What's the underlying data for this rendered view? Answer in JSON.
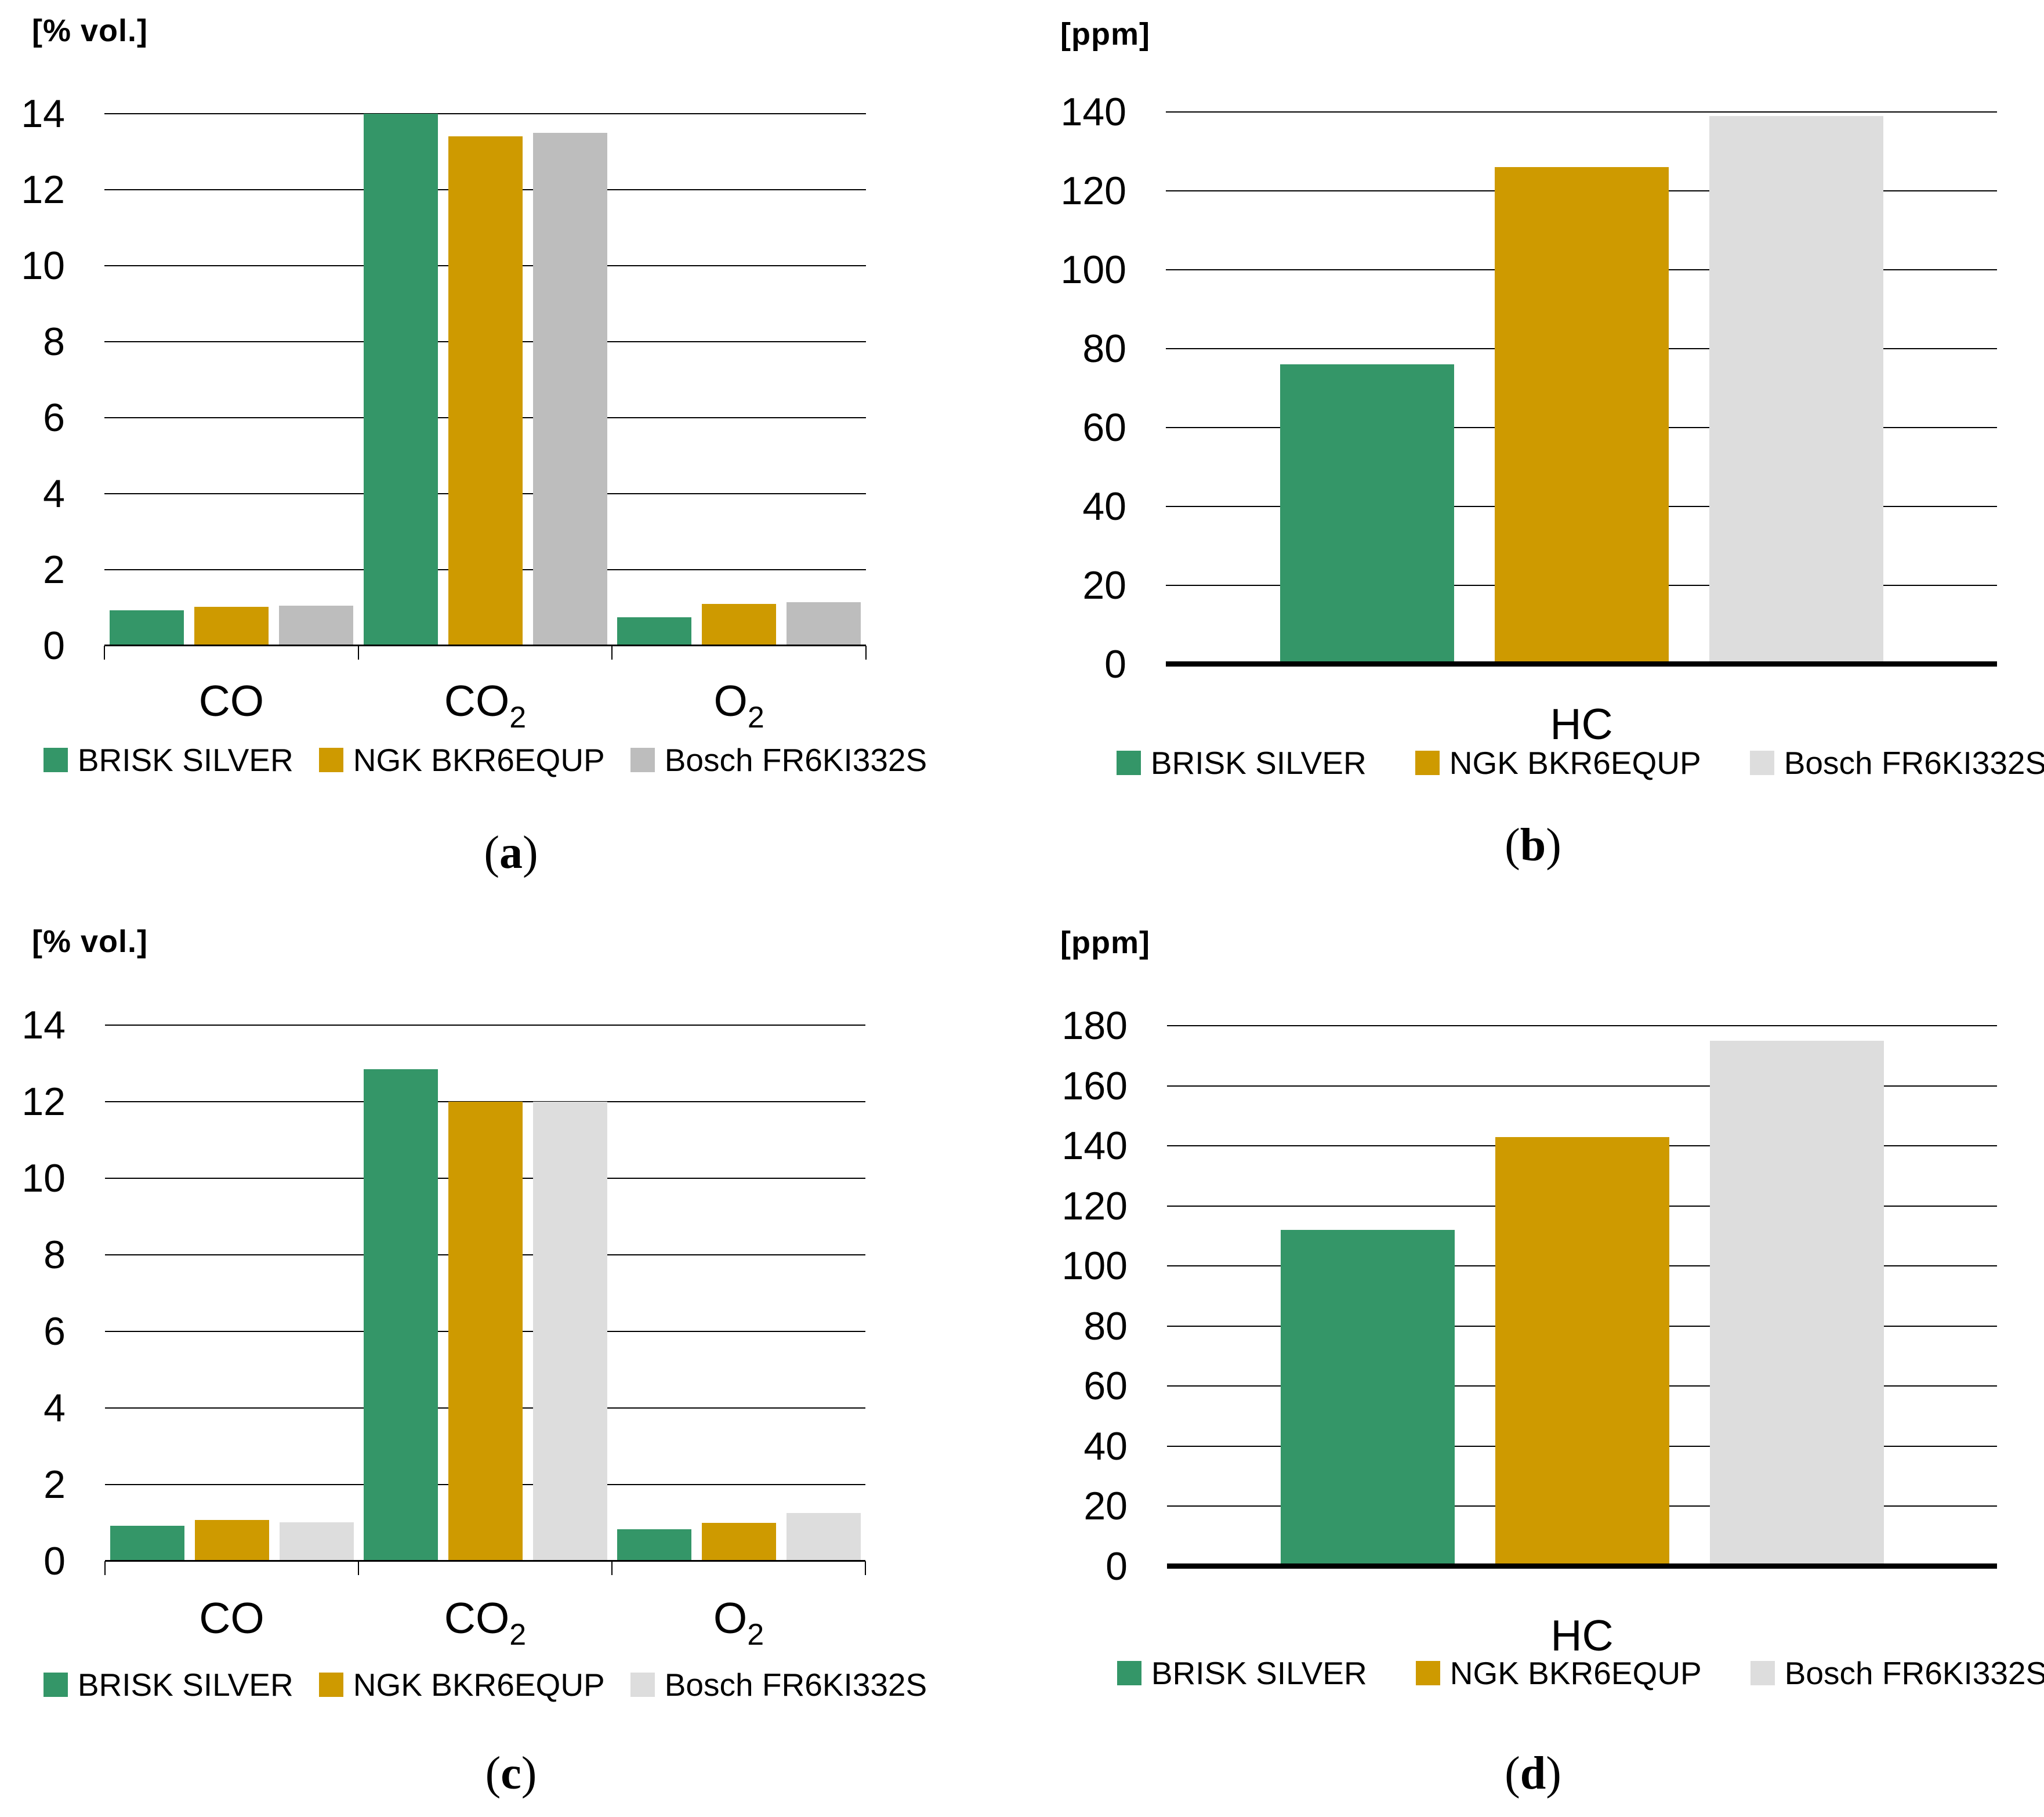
{
  "figure_note": "Four bar charts comparing exhaust gas measurements for three spark plugs",
  "chart_data": [
    {
      "id": "a",
      "type": "bar",
      "unit_label": "[% vol.]",
      "caption": {
        "pre": "(",
        "letter": "a",
        "post": ")"
      },
      "categories": [
        {
          "base": "CO",
          "sub": ""
        },
        {
          "base": "CO",
          "sub": "2"
        },
        {
          "base": "O",
          "sub": "2"
        }
      ],
      "series": [
        {
          "name": "BRISK SILVER",
          "color": "#349668",
          "values": [
            0.93,
            14.0,
            0.75
          ]
        },
        {
          "name": "NGK BKR6EQUP",
          "color": "#CE9A00",
          "values": [
            1.03,
            13.4,
            1.1
          ]
        },
        {
          "name": "Bosch FR6KI332S",
          "color": "#BDBDBD",
          "values": [
            1.06,
            13.5,
            1.15
          ]
        }
      ],
      "ylim": [
        0,
        14
      ],
      "ytick_step": 2,
      "grid": true,
      "legend_position": "bottom"
    },
    {
      "id": "b",
      "type": "bar",
      "unit_label": "[ppm]",
      "caption": {
        "pre": "(",
        "letter": "b",
        "post": ")"
      },
      "categories": [
        {
          "base": "HC",
          "sub": ""
        }
      ],
      "series": [
        {
          "name": "BRISK SILVER",
          "color": "#349668",
          "values": [
            76
          ]
        },
        {
          "name": "NGK BKR6EQUP",
          "color": "#CE9A00",
          "values": [
            126
          ]
        },
        {
          "name": "Bosch FR6KI332S",
          "color": "#DDDDDD",
          "values": [
            139
          ]
        }
      ],
      "ylim": [
        0,
        140
      ],
      "ytick_step": 20,
      "grid": true,
      "legend_position": "bottom"
    },
    {
      "id": "c",
      "type": "bar",
      "unit_label": "[% vol.]",
      "caption": {
        "pre": "(",
        "letter": "c",
        "post": ")"
      },
      "categories": [
        {
          "base": "CO",
          "sub": ""
        },
        {
          "base": "CO",
          "sub": "2"
        },
        {
          "base": "O",
          "sub": "2"
        }
      ],
      "series": [
        {
          "name": "BRISK SILVER",
          "color": "#349668",
          "values": [
            0.92,
            12.85,
            0.84
          ]
        },
        {
          "name": "NGK BKR6EQUP",
          "color": "#CE9A00",
          "values": [
            1.07,
            12.0,
            1.0
          ]
        },
        {
          "name": "Bosch FR6KI332S",
          "color": "#DDDDDD",
          "values": [
            1.01,
            12.0,
            1.26
          ]
        }
      ],
      "ylim": [
        0,
        14
      ],
      "ytick_step": 2,
      "grid": true,
      "legend_position": "bottom"
    },
    {
      "id": "d",
      "type": "bar",
      "unit_label": "[ppm]",
      "caption": {
        "pre": "(",
        "letter": "d",
        "post": ")"
      },
      "categories": [
        {
          "base": "HC",
          "sub": ""
        }
      ],
      "series": [
        {
          "name": "BRISK SILVER",
          "color": "#349668",
          "values": [
            112
          ]
        },
        {
          "name": "NGK BKR6EQUP",
          "color": "#CE9A00",
          "values": [
            143
          ]
        },
        {
          "name": "Bosch FR6KI332S",
          "color": "#DDDDDD",
          "values": [
            175
          ]
        }
      ],
      "ylim": [
        0,
        180
      ],
      "ytick_step": 20,
      "grid": true,
      "legend_position": "bottom"
    }
  ]
}
